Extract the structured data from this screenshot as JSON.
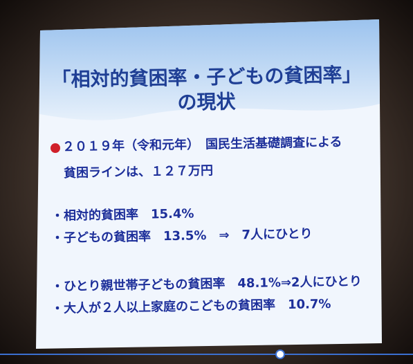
{
  "slide": {
    "title": [
      "「相対的貧困率・子どもの貧困率」",
      "の現状"
    ],
    "lines": [
      "２０１９年（令和元年）　国民生活基礎調査による",
      "貧困ラインは、１２７万円",
      "・相対的貧困率　15.4%",
      "・子どもの貧困率　13.5%　⇒　7人にひとり",
      "・ひとり親世帯子どもの貧困率　48.1%⇒2人にひとり",
      "・大人が２人以上家庭のこどもの貧困率　10.7%"
    ]
  }
}
